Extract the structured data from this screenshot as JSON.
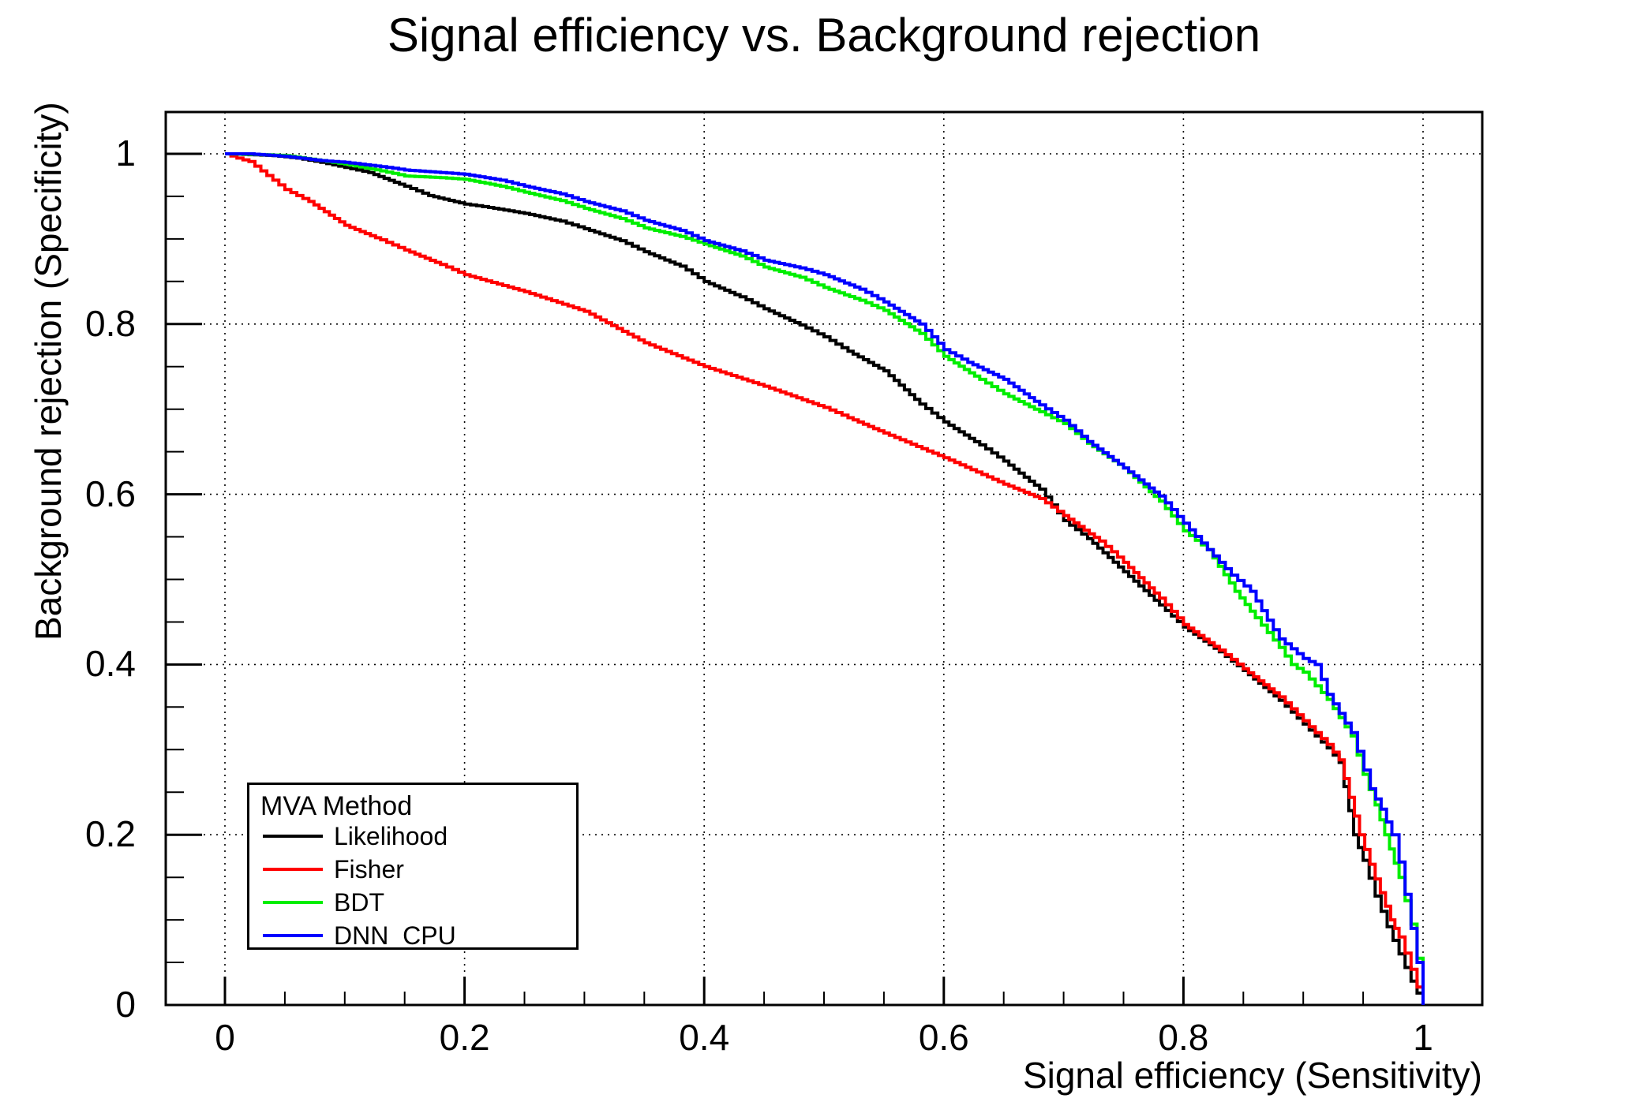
{
  "chart_data": {
    "type": "line",
    "title": "Signal efficiency vs. Background rejection",
    "xlabel": "Signal efficiency (Sensitivity)",
    "ylabel": "Background rejection (Specificity)",
    "xlim": [
      -0.05,
      1.05
    ],
    "ylim": [
      0,
      1.05
    ],
    "grid": "dotted at major ticks",
    "legend_position": "bottom-left",
    "legend_header": "MVA Method",
    "minor_tick_step": 0.05,
    "x_ticks": [
      {
        "v": 0,
        "label": "0"
      },
      {
        "v": 0.2,
        "label": "0.2"
      },
      {
        "v": 0.4,
        "label": "0.4"
      },
      {
        "v": 0.6,
        "label": "0.6"
      },
      {
        "v": 0.8,
        "label": "0.8"
      },
      {
        "v": 1,
        "label": "1"
      }
    ],
    "y_ticks": [
      {
        "v": 0,
        "label": "0"
      },
      {
        "v": 0.2,
        "label": "0.2"
      },
      {
        "v": 0.4,
        "label": "0.4"
      },
      {
        "v": 0.6,
        "label": "0.6"
      },
      {
        "v": 0.8,
        "label": "0.8"
      },
      {
        "v": 1,
        "label": "1"
      }
    ],
    "series": [
      {
        "name": "Likelihood",
        "color": "#000000",
        "points": [
          [
            0,
            1.0
          ],
          [
            0.02,
            0.999
          ],
          [
            0.04,
            0.998
          ],
          [
            0.06,
            0.995
          ],
          [
            0.08,
            0.99
          ],
          [
            0.1,
            0.984
          ],
          [
            0.12,
            0.978
          ],
          [
            0.15,
            0.962
          ],
          [
            0.17,
            0.951
          ],
          [
            0.2,
            0.941
          ],
          [
            0.22,
            0.937
          ],
          [
            0.25,
            0.93
          ],
          [
            0.28,
            0.921
          ],
          [
            0.3,
            0.912
          ],
          [
            0.33,
            0.898
          ],
          [
            0.35,
            0.885
          ],
          [
            0.38,
            0.868
          ],
          [
            0.4,
            0.85
          ],
          [
            0.43,
            0.832
          ],
          [
            0.45,
            0.818
          ],
          [
            0.48,
            0.799
          ],
          [
            0.5,
            0.785
          ],
          [
            0.52,
            0.768
          ],
          [
            0.55,
            0.745
          ],
          [
            0.58,
            0.706
          ],
          [
            0.6,
            0.685
          ],
          [
            0.63,
            0.658
          ],
          [
            0.65,
            0.639
          ],
          [
            0.68,
            0.606
          ],
          [
            0.7,
            0.569
          ],
          [
            0.72,
            0.548
          ],
          [
            0.75,
            0.509
          ],
          [
            0.78,
            0.47
          ],
          [
            0.8,
            0.444
          ],
          [
            0.83,
            0.415
          ],
          [
            0.85,
            0.393
          ],
          [
            0.88,
            0.358
          ],
          [
            0.9,
            0.33
          ],
          [
            0.92,
            0.302
          ],
          [
            0.93,
            0.285
          ],
          [
            0.942,
            0.2
          ],
          [
            0.95,
            0.17
          ],
          [
            0.96,
            0.128
          ],
          [
            0.97,
            0.092
          ],
          [
            0.98,
            0.06
          ],
          [
            0.99,
            0.028
          ],
          [
            1.0,
            0.0
          ]
        ]
      },
      {
        "name": "Fisher",
        "color": "#ff0000",
        "points": [
          [
            0,
            1.0
          ],
          [
            0.01,
            0.995
          ],
          [
            0.02,
            0.991
          ],
          [
            0.03,
            0.98
          ],
          [
            0.05,
            0.958
          ],
          [
            0.07,
            0.944
          ],
          [
            0.1,
            0.916
          ],
          [
            0.13,
            0.899
          ],
          [
            0.15,
            0.887
          ],
          [
            0.18,
            0.87
          ],
          [
            0.2,
            0.858
          ],
          [
            0.25,
            0.838
          ],
          [
            0.3,
            0.815
          ],
          [
            0.35,
            0.778
          ],
          [
            0.4,
            0.75
          ],
          [
            0.45,
            0.727
          ],
          [
            0.5,
            0.702
          ],
          [
            0.52,
            0.69
          ],
          [
            0.55,
            0.672
          ],
          [
            0.6,
            0.643
          ],
          [
            0.65,
            0.612
          ],
          [
            0.68,
            0.595
          ],
          [
            0.7,
            0.575
          ],
          [
            0.73,
            0.545
          ],
          [
            0.75,
            0.52
          ],
          [
            0.78,
            0.478
          ],
          [
            0.8,
            0.447
          ],
          [
            0.83,
            0.417
          ],
          [
            0.85,
            0.395
          ],
          [
            0.88,
            0.362
          ],
          [
            0.9,
            0.334
          ],
          [
            0.92,
            0.306
          ],
          [
            0.93,
            0.288
          ],
          [
            0.947,
            0.2
          ],
          [
            0.96,
            0.148
          ],
          [
            0.973,
            0.1
          ],
          [
            0.98,
            0.08
          ],
          [
            0.99,
            0.042
          ],
          [
            1.0,
            0.0
          ]
        ]
      },
      {
        "name": "BDT",
        "color": "#00ee00",
        "points": [
          [
            0,
            1.0
          ],
          [
            0.03,
            0.999
          ],
          [
            0.05,
            0.998
          ],
          [
            0.08,
            0.992
          ],
          [
            0.1,
            0.988
          ],
          [
            0.13,
            0.98
          ],
          [
            0.15,
            0.974
          ],
          [
            0.18,
            0.972
          ],
          [
            0.2,
            0.97
          ],
          [
            0.23,
            0.962
          ],
          [
            0.25,
            0.955
          ],
          [
            0.28,
            0.945
          ],
          [
            0.3,
            0.936
          ],
          [
            0.33,
            0.924
          ],
          [
            0.35,
            0.913
          ],
          [
            0.38,
            0.903
          ],
          [
            0.4,
            0.894
          ],
          [
            0.43,
            0.88
          ],
          [
            0.45,
            0.867
          ],
          [
            0.48,
            0.855
          ],
          [
            0.5,
            0.843
          ],
          [
            0.53,
            0.828
          ],
          [
            0.55,
            0.816
          ],
          [
            0.58,
            0.789
          ],
          [
            0.6,
            0.762
          ],
          [
            0.63,
            0.735
          ],
          [
            0.65,
            0.718
          ],
          [
            0.68,
            0.697
          ],
          [
            0.7,
            0.683
          ],
          [
            0.72,
            0.66
          ],
          [
            0.75,
            0.631
          ],
          [
            0.78,
            0.592
          ],
          [
            0.8,
            0.557
          ],
          [
            0.82,
            0.535
          ],
          [
            0.843,
            0.486
          ],
          [
            0.86,
            0.455
          ],
          [
            0.88,
            0.42
          ],
          [
            0.89,
            0.4
          ],
          [
            0.9,
            0.391
          ],
          [
            0.92,
            0.359
          ],
          [
            0.94,
            0.316
          ],
          [
            0.95,
            0.271
          ],
          [
            0.96,
            0.235
          ],
          [
            0.968,
            0.2
          ],
          [
            0.98,
            0.15
          ],
          [
            0.99,
            0.095
          ],
          [
            0.995,
            0.055
          ],
          [
            1.0,
            0.0
          ]
        ]
      },
      {
        "name": "DNN_CPU",
        "color": "#0000ff",
        "points": [
          [
            0,
            1.0
          ],
          [
            0.02,
            1.0
          ],
          [
            0.05,
            0.997
          ],
          [
            0.08,
            0.992
          ],
          [
            0.1,
            0.99
          ],
          [
            0.13,
            0.985
          ],
          [
            0.15,
            0.981
          ],
          [
            0.18,
            0.978
          ],
          [
            0.2,
            0.976
          ],
          [
            0.23,
            0.969
          ],
          [
            0.25,
            0.962
          ],
          [
            0.28,
            0.953
          ],
          [
            0.3,
            0.944
          ],
          [
            0.33,
            0.933
          ],
          [
            0.35,
            0.922
          ],
          [
            0.38,
            0.91
          ],
          [
            0.4,
            0.898
          ],
          [
            0.43,
            0.886
          ],
          [
            0.45,
            0.875
          ],
          [
            0.48,
            0.866
          ],
          [
            0.5,
            0.858
          ],
          [
            0.53,
            0.841
          ],
          [
            0.55,
            0.826
          ],
          [
            0.58,
            0.8
          ],
          [
            0.6,
            0.77
          ],
          [
            0.62,
            0.755
          ],
          [
            0.65,
            0.735
          ],
          [
            0.68,
            0.705
          ],
          [
            0.7,
            0.687
          ],
          [
            0.72,
            0.662
          ],
          [
            0.75,
            0.631
          ],
          [
            0.78,
            0.598
          ],
          [
            0.8,
            0.566
          ],
          [
            0.82,
            0.535
          ],
          [
            0.84,
            0.505
          ],
          [
            0.856,
            0.486
          ],
          [
            0.87,
            0.452
          ],
          [
            0.88,
            0.43
          ],
          [
            0.9,
            0.407
          ],
          [
            0.91,
            0.4
          ],
          [
            0.92,
            0.365
          ],
          [
            0.94,
            0.32
          ],
          [
            0.956,
            0.254
          ],
          [
            0.965,
            0.23
          ],
          [
            0.974,
            0.2
          ],
          [
            0.98,
            0.168
          ],
          [
            0.985,
            0.13
          ],
          [
            0.99,
            0.09
          ],
          [
            0.995,
            0.05
          ],
          [
            1.0,
            0.0
          ]
        ]
      }
    ]
  }
}
